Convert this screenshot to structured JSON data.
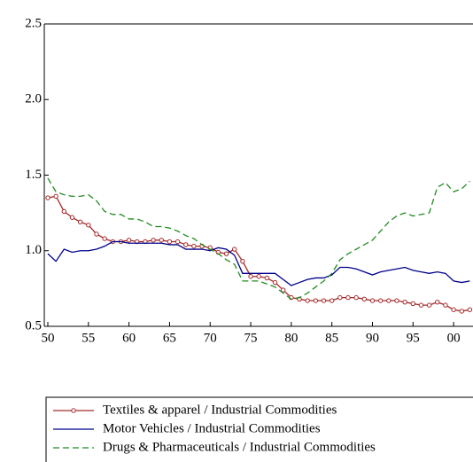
{
  "chart_data": {
    "type": "line",
    "x": [
      1950,
      1951,
      1952,
      1953,
      1954,
      1955,
      1956,
      1957,
      1958,
      1959,
      1960,
      1961,
      1962,
      1963,
      1964,
      1965,
      1966,
      1967,
      1968,
      1969,
      1970,
      1971,
      1972,
      1973,
      1974,
      1975,
      1976,
      1977,
      1978,
      1979,
      1980,
      1981,
      1982,
      1983,
      1984,
      1985,
      1986,
      1987,
      1988,
      1989,
      1990,
      1991,
      1992,
      1993,
      1994,
      1995,
      1996,
      1997,
      1998,
      1999,
      2000,
      2001,
      2002
    ],
    "series": [
      {
        "name": "Textiles & apparel / Industrial Commodities",
        "color": "#a52a2a",
        "dash": "solid",
        "markers": true,
        "values": [
          1.35,
          1.36,
          1.26,
          1.22,
          1.19,
          1.17,
          1.11,
          1.08,
          1.06,
          1.06,
          1.07,
          1.06,
          1.06,
          1.07,
          1.07,
          1.06,
          1.06,
          1.04,
          1.03,
          1.03,
          1.02,
          0.99,
          0.98,
          1.01,
          0.93,
          0.83,
          0.83,
          0.82,
          0.79,
          0.74,
          0.69,
          0.68,
          0.67,
          0.67,
          0.67,
          0.67,
          0.69,
          0.69,
          0.69,
          0.68,
          0.67,
          0.67,
          0.67,
          0.67,
          0.66,
          0.65,
          0.64,
          0.64,
          0.66,
          0.64,
          0.61,
          0.6,
          0.61
        ]
      },
      {
        "name": "Motor Vehicles / Industrial Commodities",
        "color": "#00008b",
        "dash": "solid",
        "markers": false,
        "values": [
          0.98,
          0.93,
          1.01,
          0.99,
          1.0,
          1.0,
          1.01,
          1.03,
          1.06,
          1.06,
          1.05,
          1.05,
          1.05,
          1.05,
          1.05,
          1.04,
          1.04,
          1.01,
          1.01,
          1.01,
          1.0,
          1.02,
          1.01,
          0.97,
          0.85,
          0.85,
          0.85,
          0.85,
          0.85,
          0.81,
          0.77,
          0.79,
          0.81,
          0.82,
          0.82,
          0.84,
          0.89,
          0.89,
          0.88,
          0.86,
          0.84,
          0.86,
          0.87,
          0.88,
          0.89,
          0.87,
          0.86,
          0.85,
          0.86,
          0.85,
          0.8,
          0.79,
          0.8
        ]
      },
      {
        "name": "Drugs & Pharmaceuticals / Industrial Commodities",
        "color": "#228b22",
        "dash": "dashed",
        "markers": false,
        "values": [
          1.48,
          1.39,
          1.37,
          1.36,
          1.36,
          1.37,
          1.33,
          1.26,
          1.24,
          1.24,
          1.21,
          1.21,
          1.19,
          1.16,
          1.16,
          1.15,
          1.13,
          1.1,
          1.08,
          1.04,
          1.01,
          0.98,
          0.94,
          0.91,
          0.8,
          0.8,
          0.8,
          0.78,
          0.76,
          0.72,
          0.68,
          0.69,
          0.72,
          0.76,
          0.8,
          0.85,
          0.94,
          0.98,
          1.01,
          1.04,
          1.07,
          1.13,
          1.19,
          1.23,
          1.25,
          1.23,
          1.24,
          1.25,
          1.42,
          1.45,
          1.39,
          1.41,
          1.46
        ]
      }
    ],
    "xlim": [
      1950,
      2002.5
    ],
    "xticks": [
      {
        "value": 1950,
        "label": "50"
      },
      {
        "value": 1955,
        "label": "55"
      },
      {
        "value": 1960,
        "label": "60"
      },
      {
        "value": 1965,
        "label": "65"
      },
      {
        "value": 1970,
        "label": "70"
      },
      {
        "value": 1975,
        "label": "75"
      },
      {
        "value": 1980,
        "label": "80"
      },
      {
        "value": 1985,
        "label": "85"
      },
      {
        "value": 1990,
        "label": "90"
      },
      {
        "value": 1995,
        "label": "95"
      },
      {
        "value": 2000,
        "label": "00"
      }
    ],
    "ylim": [
      0.5,
      2.5
    ],
    "yticks": [
      {
        "value": 0.5,
        "label": "0.5"
      },
      {
        "value": 1,
        "label": "1.0"
      },
      {
        "value": 1.5,
        "label": "1.5"
      },
      {
        "value": 2,
        "label": "2.0"
      },
      {
        "value": 2.5,
        "label": "2.5"
      }
    ],
    "grid": false,
    "legend": "bottom"
  }
}
